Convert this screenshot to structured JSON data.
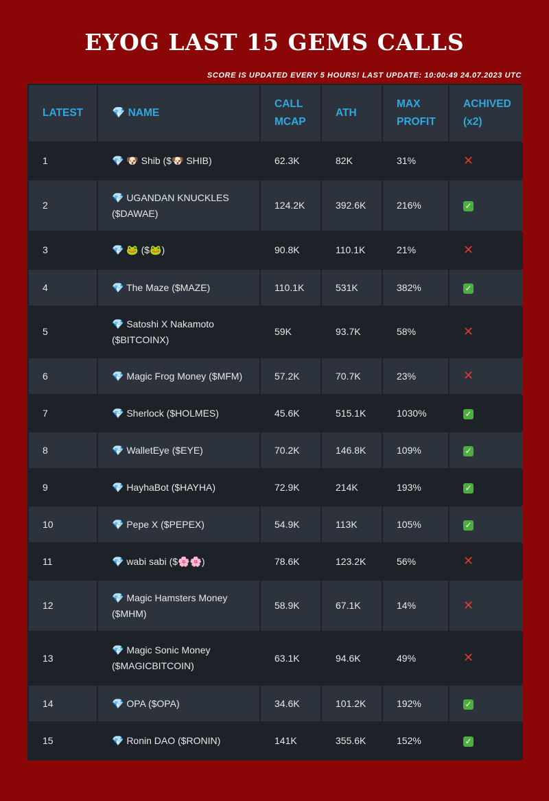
{
  "header": {
    "title": "EYOG LAST 15 GEMS CALLS",
    "update_note": "SCORE IS UPDATED EVERY 5 HOURS! LAST UPDATE: 10:00:49 24.07.2023 UTC"
  },
  "table": {
    "columns": [
      "LATEST",
      "💎 NAME",
      "CALL MCAP",
      "ATH",
      "MAX PROFIT",
      "ACHIVED (x2)"
    ],
    "rows": [
      {
        "latest": "1",
        "name": "💎 🐶 Shib ($🐶 SHIB)",
        "mcap": "62.3K",
        "ath": "82K",
        "profit": "31%",
        "achived": false
      },
      {
        "latest": "2",
        "name": "💎 UGANDAN KNUCKLES ($DAWAE)",
        "mcap": "124.2K",
        "ath": "392.6K",
        "profit": "216%",
        "achived": true
      },
      {
        "latest": "3",
        "name": "💎 🐸 ($🐸)",
        "mcap": "90.8K",
        "ath": "110.1K",
        "profit": "21%",
        "achived": false
      },
      {
        "latest": "4",
        "name": "💎 The Maze ($MAZE)",
        "mcap": "110.1K",
        "ath": "531K",
        "profit": "382%",
        "achived": true
      },
      {
        "latest": "5",
        "name": "💎 Satoshi X Nakamoto ($BITCOINX)",
        "mcap": "59K",
        "ath": "93.7K",
        "profit": "58%",
        "achived": false
      },
      {
        "latest": "6",
        "name": "💎 Magic Frog Money ($MFM)",
        "mcap": "57.2K",
        "ath": "70.7K",
        "profit": "23%",
        "achived": false
      },
      {
        "latest": "7",
        "name": "💎 Sherlock ($HOLMES)",
        "mcap": "45.6K",
        "ath": "515.1K",
        "profit": "1030%",
        "achived": true
      },
      {
        "latest": "8",
        "name": "💎 WalletEye ($EYE)",
        "mcap": "70.2K",
        "ath": "146.8K",
        "profit": "109%",
        "achived": true
      },
      {
        "latest": "9",
        "name": "💎 HayhaBot ($HAYHA)",
        "mcap": "72.9K",
        "ath": "214K",
        "profit": "193%",
        "achived": true
      },
      {
        "latest": "10",
        "name": "💎 Pepe X ($PEPEX)",
        "mcap": "54.9K",
        "ath": "113K",
        "profit": "105%",
        "achived": true
      },
      {
        "latest": "11",
        "name": "💎 wabi sabi ($🌸🌸)",
        "mcap": "78.6K",
        "ath": "123.2K",
        "profit": "56%",
        "achived": false
      },
      {
        "latest": "12",
        "name": "💎 Magic Hamsters Money ($MHM)",
        "mcap": "58.9K",
        "ath": "67.1K",
        "profit": "14%",
        "achived": false
      },
      {
        "latest": "13",
        "name": "💎 Magic Sonic Money ($MAGICBITCOIN)",
        "mcap": "63.1K",
        "ath": "94.6K",
        "profit": "49%",
        "achived": false
      },
      {
        "latest": "14",
        "name": "💎 OPA ($OPA)",
        "mcap": "34.6K",
        "ath": "101.2K",
        "profit": "192%",
        "achived": true
      },
      {
        "latest": "15",
        "name": "💎 Ronin DAO ($RONIN)",
        "mcap": "141K",
        "ath": "355.6K",
        "profit": "152%",
        "achived": true
      }
    ]
  },
  "icons": {
    "achived_yes": "check-mark-button-icon",
    "achived_no": "cross-mark-icon",
    "yes_glyph": "✓",
    "no_glyph": "✕"
  },
  "colors": {
    "background": "#8b0707",
    "header_text": "#2ea8df",
    "row_dark": "#1d2128",
    "row_light": "#2d333c",
    "check_green": "#4cae3f",
    "cross_red": "#e03b2f"
  }
}
